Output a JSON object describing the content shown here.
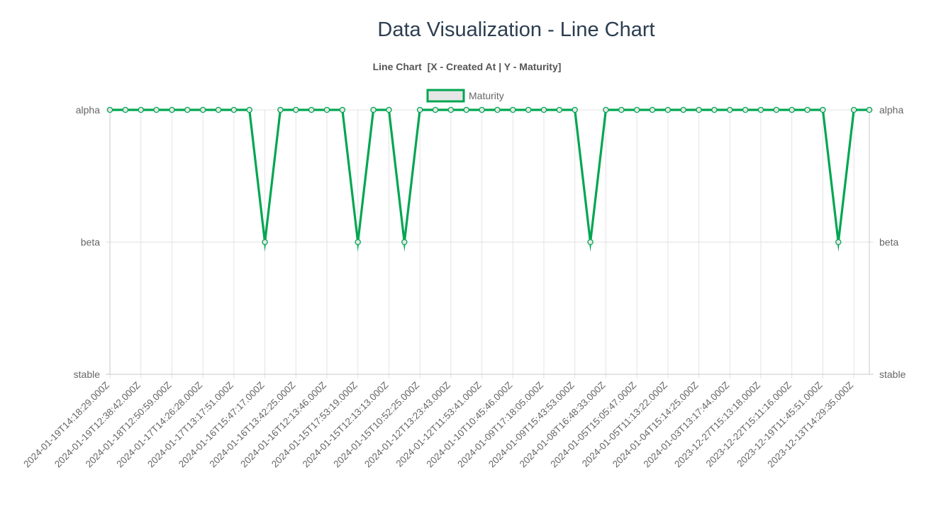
{
  "page": {
    "title": "Data Visualization - Line Chart"
  },
  "chart_data": {
    "type": "line",
    "title": "Line Chart  [X - Created At | Y - Maturity]",
    "y_categories": [
      "stable",
      "beta",
      "alpha"
    ],
    "axis_right": true,
    "grid": true,
    "legend_position": "top",
    "x_tick_labels": [
      "2024-01-19T14:18:29.000Z",
      "2024-01-19T12:38:42.000Z",
      "2024-01-18T12:50:59.000Z",
      "2024-01-17T14:26:28.000Z",
      "2024-01-17T13:17:51.000Z",
      "2024-01-16T15:47:17.000Z",
      "2024-01-16T13:42:25.000Z",
      "2024-01-16T12:13:46.000Z",
      "2024-01-15T17:53:19.000Z",
      "2024-01-15T12:13:13.000Z",
      "2024-01-15T10:52:25.000Z",
      "2024-01-12T13:23:43.000Z",
      "2024-01-12T11:53:41.000Z",
      "2024-01-10T10:45:46.000Z",
      "2024-01-09T17:18:05.000Z",
      "2024-01-09T15:43:53.000Z",
      "2024-01-08T16:48:33.000Z",
      "2024-01-05T15:05:47.000Z",
      "2024-01-05T11:13:22.000Z",
      "2024-01-04T15:14:25.000Z",
      "2024-01-03T13:17:44.000Z",
      "2023-12-27T15:13:18.000Z",
      "2023-12-22T15:11:16.000Z",
      "2023-12-19T11:45:51.000Z",
      "2023-12-13T14:29:35.000Z"
    ],
    "series": [
      {
        "name": "Maturity",
        "color": "#00a651",
        "fill": "#e6e6e6",
        "values": [
          "alpha",
          "alpha",
          "alpha",
          "alpha",
          "alpha",
          "alpha",
          "alpha",
          "alpha",
          "alpha",
          "alpha",
          "beta",
          "alpha",
          "alpha",
          "alpha",
          "alpha",
          "alpha",
          "beta",
          "alpha",
          "alpha",
          "beta",
          "alpha",
          "alpha",
          "alpha",
          "alpha",
          "alpha",
          "alpha",
          "alpha",
          "alpha",
          "alpha",
          "alpha",
          "alpha",
          "beta",
          "alpha",
          "alpha",
          "alpha",
          "alpha",
          "alpha",
          "alpha",
          "alpha",
          "alpha",
          "alpha",
          "alpha",
          "alpha",
          "alpha",
          "alpha",
          "alpha",
          "alpha",
          "beta",
          "alpha",
          "alpha"
        ]
      }
    ]
  }
}
